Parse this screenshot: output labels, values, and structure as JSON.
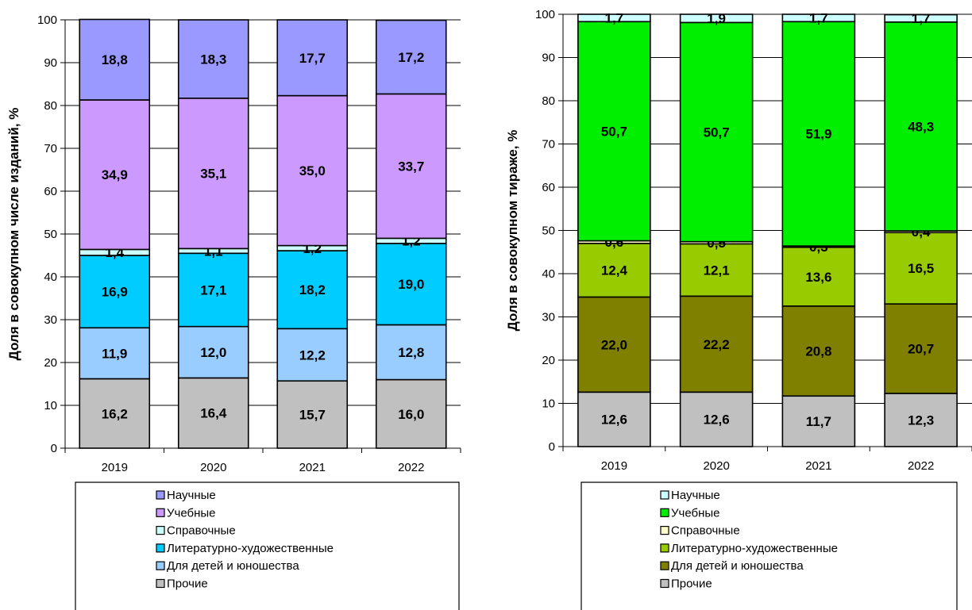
{
  "chart_data": [
    {
      "type": "bar",
      "stacked": true,
      "categories": [
        "2019",
        "2020",
        "2021",
        "2022"
      ],
      "ylabel": "Доля в совокупном числе изданий, %",
      "ylim": [
        0,
        100
      ],
      "yticks": [
        "0",
        "10",
        "20",
        "30",
        "40",
        "50",
        "60",
        "70",
        "80",
        "90",
        "100"
      ],
      "series": [
        {
          "name": "Прочие",
          "color": "#c0c0c0",
          "values": [
            16.2,
            16.4,
            15.7,
            16.0
          ],
          "labels": [
            "16,2",
            "16,4",
            "15,7",
            "16,0"
          ]
        },
        {
          "name": "Для детей и юношества",
          "color": "#99ccff",
          "values": [
            11.9,
            12.0,
            12.2,
            12.8
          ],
          "labels": [
            "11,9",
            "12,0",
            "12,2",
            "12,8"
          ]
        },
        {
          "name": "Литературно-художественные",
          "color": "#00ccff",
          "values": [
            16.9,
            17.1,
            18.2,
            19.0
          ],
          "labels": [
            "16,9",
            "17,1",
            "18,2",
            "19,0"
          ]
        },
        {
          "name": "Справочные",
          "color": "#ccffff",
          "values": [
            1.4,
            1.1,
            1.2,
            1.2
          ],
          "labels": [
            "1,4",
            "1,1",
            "1,2",
            "1,2"
          ]
        },
        {
          "name": "Учебные",
          "color": "#cc99ff",
          "values": [
            34.9,
            35.1,
            35.0,
            33.7
          ],
          "labels": [
            "34,9",
            "35,1",
            "35,0",
            "33,7"
          ]
        },
        {
          "name": "Научные",
          "color": "#9999ff",
          "values": [
            18.8,
            18.3,
            17.7,
            17.2
          ],
          "labels": [
            "18,8",
            "18,3",
            "17,7",
            "17,2"
          ]
        }
      ],
      "legend": [
        "Научные",
        "Учебные",
        "Справочные",
        "Литературно-художественные",
        "Для детей и юношества",
        "Прочие"
      ],
      "legend_position": "bottom"
    },
    {
      "type": "bar",
      "stacked": true,
      "categories": [
        "2019",
        "2020",
        "2021",
        "2022"
      ],
      "ylabel": "Доля в совокупном тираже, %",
      "ylim": [
        0,
        100
      ],
      "yticks": [
        "0",
        "10",
        "20",
        "30",
        "40",
        "50",
        "60",
        "70",
        "80",
        "90",
        "100"
      ],
      "series": [
        {
          "name": "Прочие",
          "color": "#c0c0c0",
          "values": [
            12.6,
            12.6,
            11.7,
            12.3
          ],
          "labels": [
            "12,6",
            "12,6",
            "11,7",
            "12,3"
          ]
        },
        {
          "name": "Для детей и юношества",
          "color": "#808000",
          "values": [
            22.0,
            22.2,
            20.8,
            20.7
          ],
          "labels": [
            "22,0",
            "22,2",
            "20,8",
            "20,7"
          ]
        },
        {
          "name": "Литературно-художественные",
          "color": "#99cc00",
          "values": [
            12.4,
            12.1,
            13.6,
            16.5
          ],
          "labels": [
            "12,4",
            "12,1",
            "13,6",
            "16,5"
          ]
        },
        {
          "name": "Справочные",
          "color": "#ffffcc",
          "values": [
            0.6,
            0.5,
            0.3,
            0.4
          ],
          "labels": [
            "0,6",
            "0,5",
            "0,3",
            "0,4"
          ]
        },
        {
          "name": "Учебные",
          "color": "#00ee00",
          "values": [
            50.7,
            50.7,
            51.9,
            48.3
          ],
          "labels": [
            "50,7",
            "50,7",
            "51,9",
            "48,3"
          ]
        },
        {
          "name": "Научные",
          "color": "#ccffff",
          "values": [
            1.7,
            1.9,
            1.7,
            1.7
          ],
          "labels": [
            "1,7",
            "1,9",
            "1,7",
            "1,7"
          ]
        }
      ],
      "legend": [
        "Научные",
        "Учебные",
        "Справочные",
        "Литературно-художественные",
        "Для детей и юношества",
        "Прочие"
      ],
      "legend_position": "bottom"
    }
  ]
}
